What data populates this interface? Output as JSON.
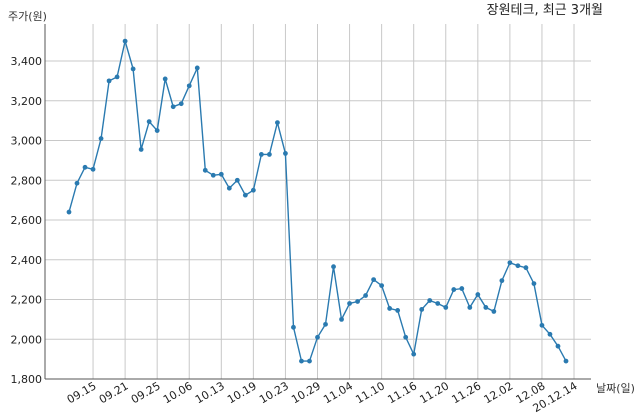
{
  "chart_data": {
    "type": "line",
    "title": "장원테크, 최근 3개월",
    "ylabel": "주가(원)",
    "xlabel": "날짜(일)",
    "ylim": [
      1800,
      3500
    ],
    "yticks": [
      1800,
      2000,
      2200,
      2400,
      2600,
      2800,
      3000,
      3200,
      3400
    ],
    "ytick_labels": [
      "1,800",
      "2,000",
      "2,200",
      "2,400",
      "2,600",
      "2,800",
      "3,000",
      "3,200",
      "3,400"
    ],
    "xtick_labels": [
      "09.15",
      "09.21",
      "09.25",
      "10.06",
      "10.13",
      "10.19",
      "10.23",
      "10.29",
      "11.04",
      "11.10",
      "11.16",
      "11.20",
      "11.26",
      "12.02",
      "12.08",
      "20.12.14"
    ],
    "xtick_index": [
      3,
      7,
      11,
      15,
      19,
      23,
      27,
      31,
      35,
      39,
      43,
      47,
      51,
      55,
      59,
      63
    ],
    "grid": true,
    "color": "#2a7ab0",
    "series": [
      {
        "values": [
          2640,
          2785,
          2865,
          2855,
          3010,
          3300,
          3320,
          3500,
          3360,
          2955,
          3095,
          3050,
          3310,
          3170,
          3185,
          3275,
          3365,
          2850,
          2825,
          2830,
          2760,
          2800,
          2725,
          2750,
          2930,
          2930,
          3090,
          2935,
          2060,
          1890,
          1890,
          2010,
          2075,
          2365,
          2100,
          2180,
          2190,
          2220,
          2300,
          2270,
          2155,
          2145,
          2010,
          1925,
          2150,
          2195,
          2180,
          2160,
          2250,
          2255,
          2160,
          2225,
          2160,
          2140,
          2295,
          2385,
          2370,
          2360,
          2280,
          2070,
          2025,
          1965,
          1890
        ]
      }
    ]
  }
}
